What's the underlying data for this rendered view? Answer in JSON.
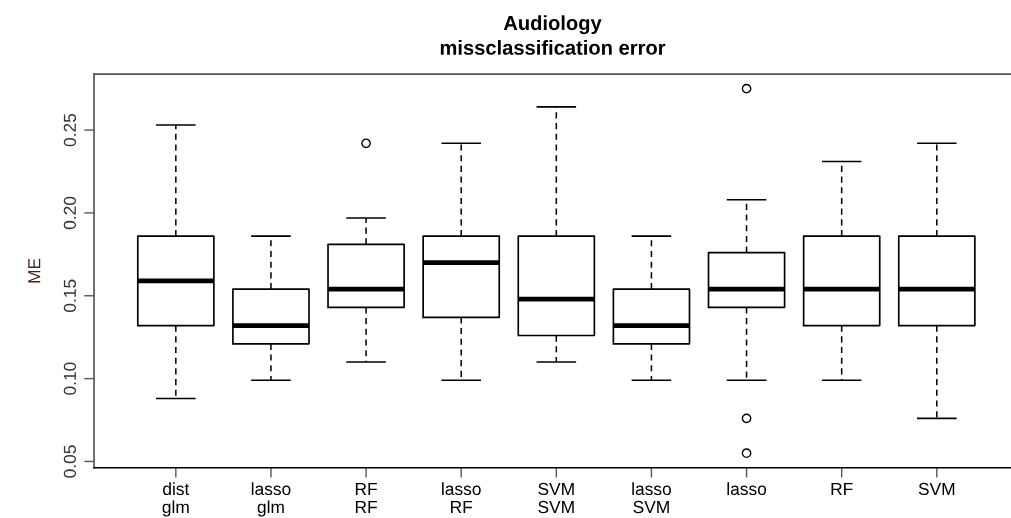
{
  "chart_data": {
    "type": "box",
    "title": "Audiology\nmissclassification error",
    "ylabel": "ME",
    "categories": [
      "dist\nglm",
      "lasso\nglm",
      "RF\nRF",
      "lasso\nRF",
      "SVM\nSVM",
      "lasso\nSVM",
      "lasso",
      "RF",
      "SVM"
    ],
    "boxes": [
      {
        "low": 0.088,
        "q1": 0.132,
        "median": 0.159,
        "q3": 0.186,
        "high": 0.253
      },
      {
        "low": 0.099,
        "q1": 0.121,
        "median": 0.132,
        "q3": 0.154,
        "high": 0.186
      },
      {
        "low": 0.11,
        "q1": 0.143,
        "median": 0.154,
        "q3": 0.181,
        "high": 0.197,
        "outliers": [
          0.242
        ]
      },
      {
        "low": 0.099,
        "q1": 0.137,
        "median": 0.17,
        "q3": 0.186,
        "high": 0.242
      },
      {
        "low": 0.11,
        "q1": 0.126,
        "median": 0.148,
        "q3": 0.186,
        "high": 0.264
      },
      {
        "low": 0.099,
        "q1": 0.121,
        "median": 0.132,
        "q3": 0.154,
        "high": 0.186
      },
      {
        "low": 0.099,
        "q1": 0.143,
        "median": 0.154,
        "q3": 0.176,
        "high": 0.208,
        "outliers": [
          0.275,
          0.076,
          0.055
        ]
      },
      {
        "low": 0.099,
        "q1": 0.132,
        "median": 0.154,
        "q3": 0.186,
        "high": 0.231
      },
      {
        "low": 0.076,
        "q1": 0.132,
        "median": 0.154,
        "q3": 0.186,
        "high": 0.242
      }
    ],
    "ylim": [
      0.0462,
      0.2838
    ],
    "yticks": [
      {
        "value": 0.05,
        "label": "0.05"
      },
      {
        "value": 0.1,
        "label": "0.10"
      },
      {
        "value": 0.15,
        "label": "0.15"
      },
      {
        "value": 0.2,
        "label": "0.20"
      },
      {
        "value": 0.25,
        "label": "0.25"
      }
    ],
    "grid": false,
    "legend": false
  }
}
